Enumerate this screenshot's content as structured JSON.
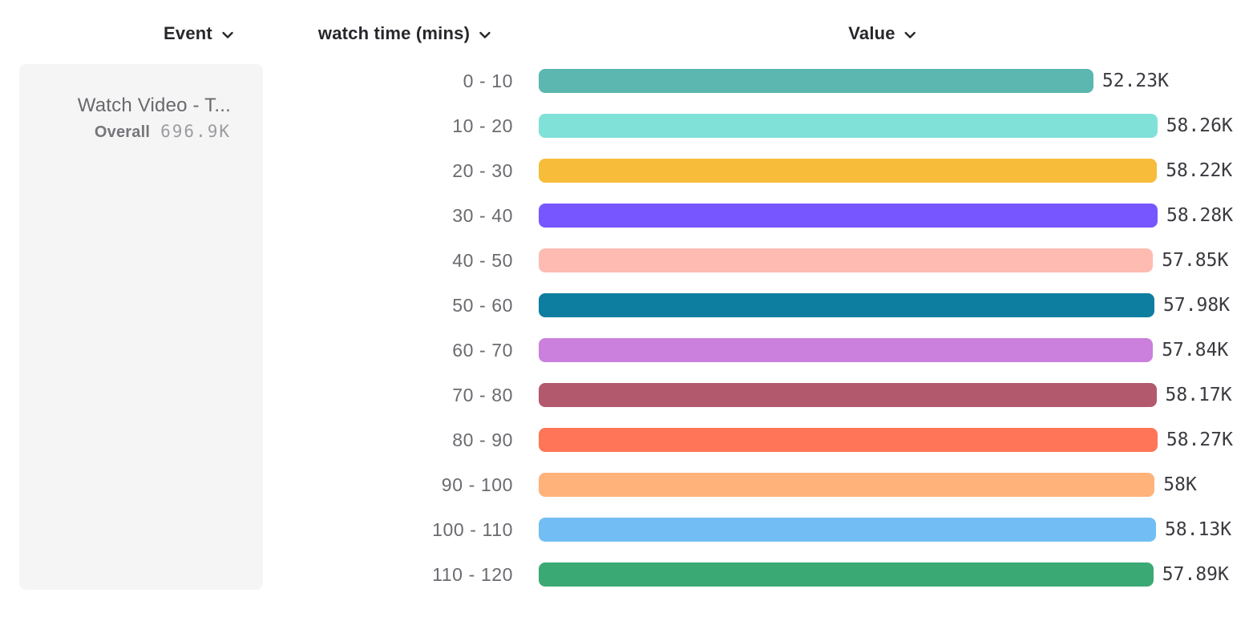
{
  "columns": {
    "event": {
      "label": "Event"
    },
    "breakdown": {
      "label": "watch time (mins)"
    },
    "value": {
      "label": "Value"
    }
  },
  "event_card": {
    "title": "Watch Video - T...",
    "overall_label": "Overall",
    "overall_value": "696.9K"
  },
  "chart_data": {
    "type": "bar",
    "orientation": "horizontal",
    "title": "",
    "xlabel": "Value",
    "ylabel": "watch time (mins)",
    "categories": [
      "0 - 10",
      "10 - 20",
      "20 - 30",
      "30 - 40",
      "40 - 50",
      "50 - 60",
      "60 - 70",
      "70 - 80",
      "80 - 90",
      "90 - 100",
      "100 - 110",
      "110 - 120"
    ],
    "values": [
      52230,
      58260,
      58220,
      58280,
      57850,
      57980,
      57840,
      58170,
      58270,
      58000,
      58130,
      57890
    ],
    "value_labels": [
      "52.23K",
      "58.26K",
      "58.22K",
      "58.28K",
      "57.85K",
      "57.98K",
      "57.84K",
      "58.17K",
      "58.27K",
      "58K",
      "58.13K",
      "57.89K"
    ],
    "colors": [
      "#5BB7AF",
      "#80E1D9",
      "#F8BC3B",
      "#7856FF",
      "#FEBBB2",
      "#0D7EA0",
      "#CA80DC",
      "#B2596E",
      "#FF7557",
      "#FFB27A",
      "#72BEF4",
      "#3BA974"
    ],
    "xlim": [
      0,
      58280
    ],
    "grid": false,
    "legend": false
  },
  "ui_colors": {
    "header_text": "#27272c",
    "category_label_text": "#6a6a70",
    "value_label_text": "#3a3a40",
    "card_background": "#f5f5f6",
    "card_title_text": "#68686d",
    "overall_label_text": "#75757b",
    "overall_value_text": "#9b9ba1"
  }
}
